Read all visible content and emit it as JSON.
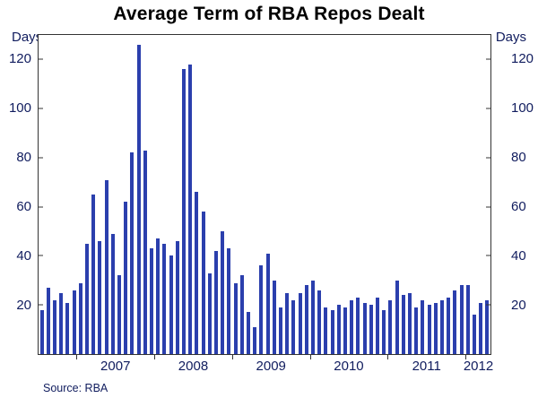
{
  "source_note": "Source: RBA",
  "chart_data": {
    "type": "bar",
    "title": "Average Term of RBA Repos Dealt",
    "ylabel_left": "Days",
    "ylabel_right": "Days",
    "ylim": [
      0,
      130
    ],
    "yticks": [
      20,
      40,
      60,
      80,
      100,
      120
    ],
    "x_tick_labels": [
      "2007",
      "2008",
      "2009",
      "2010",
      "2011",
      "2012"
    ],
    "grid": false,
    "legend": "none",
    "bar_color": "#2b3fad",
    "frame_color": "#333333",
    "axis_text_color": "#101c5e",
    "months": [
      "2006-07",
      "2006-08",
      "2006-09",
      "2006-10",
      "2006-11",
      "2006-12",
      "2007-01",
      "2007-02",
      "2007-03",
      "2007-04",
      "2007-05",
      "2007-06",
      "2007-07",
      "2007-08",
      "2007-09",
      "2007-10",
      "2007-11",
      "2007-12",
      "2008-01",
      "2008-02",
      "2008-03",
      "2008-04",
      "2008-05",
      "2008-06",
      "2008-07",
      "2008-08",
      "2008-09",
      "2008-10",
      "2008-11",
      "2008-12",
      "2009-01",
      "2009-02",
      "2009-03",
      "2009-04",
      "2009-05",
      "2009-06",
      "2009-07",
      "2009-08",
      "2009-09",
      "2009-10",
      "2009-11",
      "2009-12",
      "2010-01",
      "2010-02",
      "2010-03",
      "2010-04",
      "2010-05",
      "2010-06",
      "2010-07",
      "2010-08",
      "2010-09",
      "2010-10",
      "2010-11",
      "2010-12",
      "2011-01",
      "2011-02",
      "2011-03",
      "2011-04",
      "2011-05",
      "2011-06",
      "2011-07",
      "2011-08",
      "2011-09",
      "2011-10",
      "2011-11",
      "2011-12",
      "2012-01",
      "2012-02",
      "2012-03",
      "2012-04"
    ],
    "values": [
      18,
      27,
      22,
      25,
      21,
      26,
      29,
      45,
      65,
      46,
      71,
      49,
      32,
      62,
      82,
      126,
      83,
      43,
      47,
      45,
      40,
      46,
      116,
      118,
      66,
      58,
      33,
      42,
      50,
      43,
      29,
      32,
      17,
      11,
      36,
      41,
      30,
      19,
      25,
      22,
      25,
      28,
      30,
      26,
      19,
      18,
      20,
      19,
      22,
      23,
      21,
      20,
      23,
      18,
      22,
      30,
      24,
      25,
      19,
      22,
      20,
      21,
      22,
      23,
      26,
      28,
      28,
      16,
      21,
      22
    ]
  }
}
